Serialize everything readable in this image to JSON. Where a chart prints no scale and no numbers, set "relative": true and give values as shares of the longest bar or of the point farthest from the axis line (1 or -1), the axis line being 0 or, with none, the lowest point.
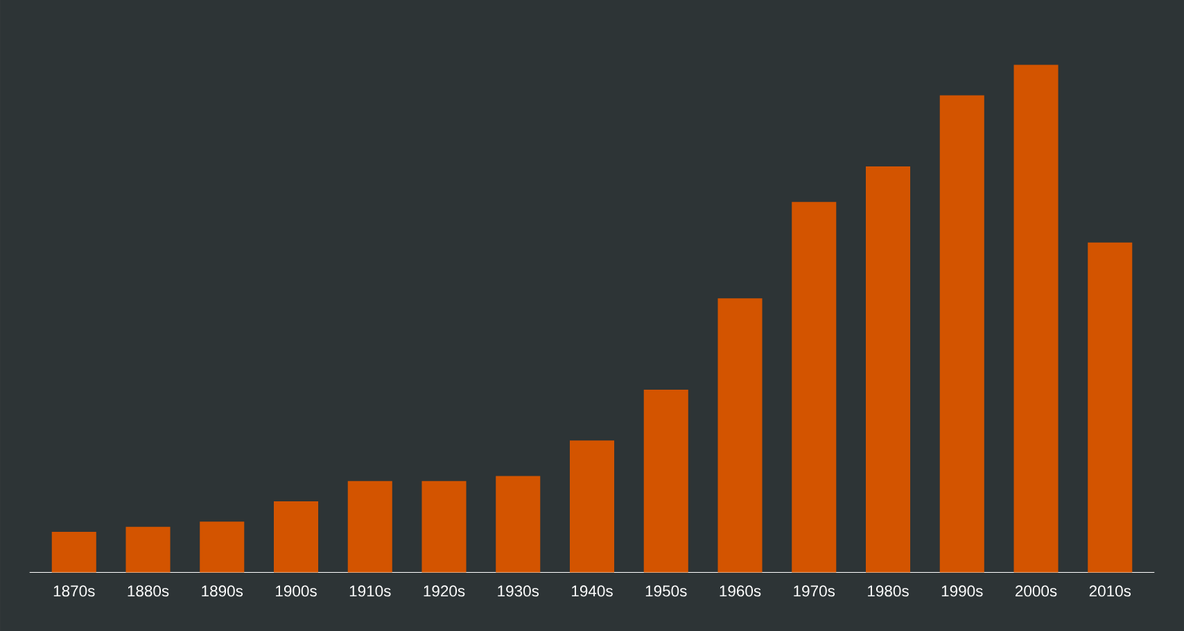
{
  "chart_data": {
    "type": "bar",
    "relative": true,
    "color": "#d35400",
    "categories": [
      "1870s",
      "1880s",
      "1890s",
      "1900s",
      "1910s",
      "1920s",
      "1930s",
      "1940s",
      "1950s",
      "1960s",
      "1970s",
      "1980s",
      "1990s",
      "2000s",
      "2010s"
    ],
    "values": [
      0.08,
      0.09,
      0.1,
      0.14,
      0.18,
      0.18,
      0.19,
      0.26,
      0.36,
      0.54,
      0.73,
      0.8,
      0.94,
      1,
      0.65
    ]
  }
}
